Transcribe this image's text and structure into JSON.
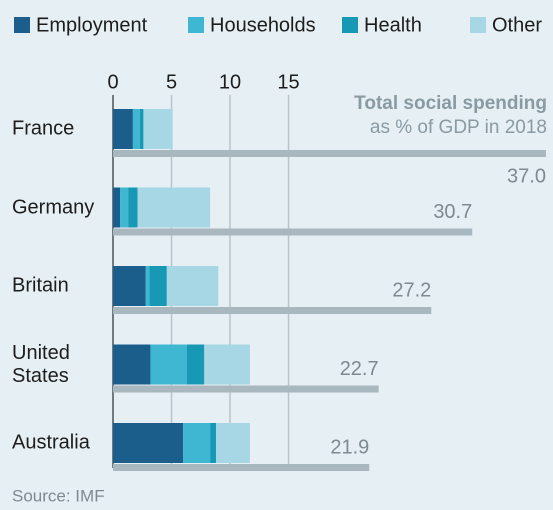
{
  "chart_data": {
    "type": "stacked-bar-horizontal",
    "title": "Total social spending",
    "subtitle": "as % of GDP in 2018",
    "source": "Source: IMF",
    "categories": [
      "France",
      "Germany",
      "Britain",
      "United States",
      "Australia"
    ],
    "series": [
      {
        "name": "Employment",
        "color": "#1b5e8c",
        "values": [
          1.7,
          0.6,
          2.8,
          3.2,
          6.0
        ]
      },
      {
        "name": "Households",
        "color": "#3fb7d3",
        "values": [
          0.6,
          0.7,
          0.3,
          3.1,
          2.3
        ]
      },
      {
        "name": "Health",
        "color": "#1798b5",
        "values": [
          0.3,
          0.8,
          1.5,
          1.5,
          0.5
        ]
      },
      {
        "name": "Other",
        "color": "#a7d7e5",
        "values": [
          2.5,
          6.2,
          4.4,
          3.9,
          2.9
        ]
      }
    ],
    "totals": {
      "color": "#a9b7bf",
      "values": [
        37.0,
        30.7,
        27.2,
        22.7,
        21.9
      ],
      "value_labels": [
        "37.0",
        "30.7",
        "27.2",
        "22.7",
        "21.9"
      ]
    },
    "xlim": [
      0,
      37.6
    ],
    "xticks": [
      0,
      5,
      10,
      15
    ],
    "grid": true
  }
}
